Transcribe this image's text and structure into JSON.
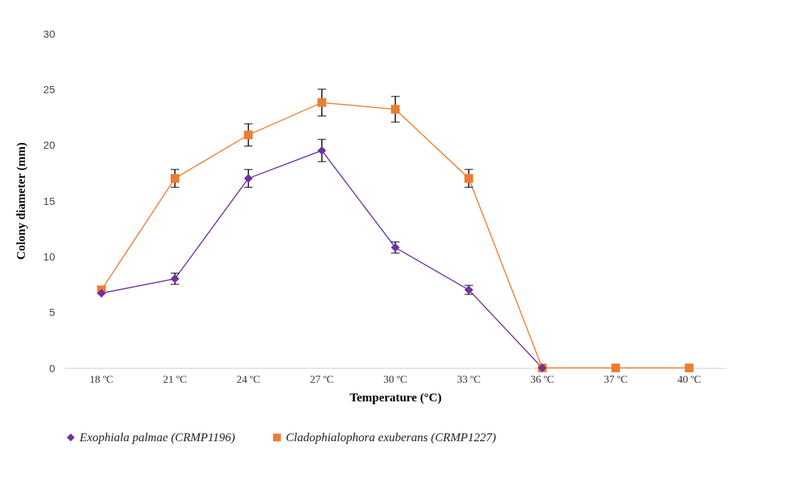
{
  "chart_data": {
    "type": "line",
    "xlabel": "Temperature (°C)",
    "ylabel": "Colony diameter (mm)",
    "categories": [
      "18 ºC",
      "21 ºC",
      "24 ºC",
      "27 ºC",
      "30 ºC",
      "33 ºC",
      "36 ºC",
      "37 ºC",
      "40 ºC"
    ],
    "ylim": [
      0,
      30
    ],
    "yticks": [
      0,
      5,
      10,
      15,
      20,
      25,
      30
    ],
    "grid": false,
    "legend": "bottom",
    "series": [
      {
        "name": "Exophiala palmae (CRMP1196)",
        "color": "#7030a0",
        "marker": "diamond",
        "values": [
          6.7,
          8.0,
          17.0,
          19.5,
          10.8,
          7.0,
          0,
          null,
          null
        ],
        "errors": [
          null,
          0.5,
          0.8,
          1.0,
          0.5,
          0.4,
          null,
          null,
          null
        ]
      },
      {
        "name": "Cladophialophora exuberans (CRMP1227)",
        "color": "#ed7d31",
        "marker": "square",
        "values": [
          7.0,
          17.0,
          20.9,
          23.8,
          23.2,
          17.0,
          0,
          0,
          0
        ],
        "errors": [
          0.3,
          0.8,
          1.0,
          1.2,
          1.15,
          0.8,
          null,
          null,
          null
        ]
      }
    ]
  }
}
